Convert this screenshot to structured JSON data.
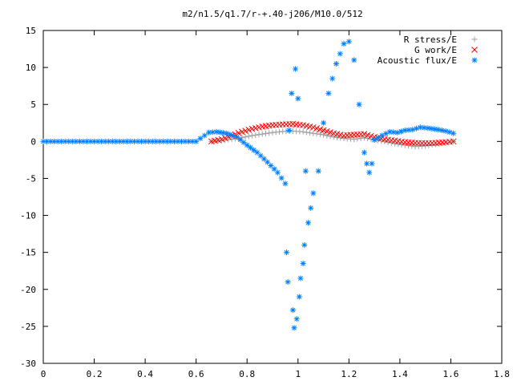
{
  "chart_data": {
    "type": "scatter",
    "title": "m2/n1.5/q1.7/r-+.40-j206/M10.0/512",
    "xlabel": "",
    "ylabel": "",
    "xlim": [
      0,
      1.8
    ],
    "ylim": [
      -30,
      15
    ],
    "x_ticks": [
      "0",
      "0.2",
      "0.4",
      "0.6",
      "0.8",
      "1",
      "1.2",
      "1.4",
      "1.6",
      "1.8"
    ],
    "y_ticks": [
      "15",
      "10",
      "5",
      "0",
      "-5",
      "-10",
      "-15",
      "-20",
      "-25",
      "-30"
    ],
    "grid": false,
    "legend_position": "top-right",
    "series": [
      {
        "name": "R stress/E",
        "marker": "+",
        "color": "#a0a0a0",
        "points": [
          [
            0.66,
            0.0
          ],
          [
            0.7,
            0.1
          ],
          [
            0.74,
            0.3
          ],
          [
            0.78,
            0.5
          ],
          [
            0.82,
            0.8
          ],
          [
            0.86,
            1.0
          ],
          [
            0.9,
            1.2
          ],
          [
            0.94,
            1.35
          ],
          [
            0.98,
            1.4
          ],
          [
            1.02,
            1.3
          ],
          [
            1.06,
            1.1
          ],
          [
            1.1,
            0.9
          ],
          [
            1.14,
            0.6
          ],
          [
            1.18,
            0.4
          ],
          [
            1.22,
            0.3
          ],
          [
            1.26,
            0.5
          ],
          [
            1.3,
            0.2
          ],
          [
            1.34,
            0.0
          ],
          [
            1.38,
            -0.3
          ],
          [
            1.42,
            -0.5
          ],
          [
            1.46,
            -0.7
          ],
          [
            1.5,
            -0.6
          ],
          [
            1.54,
            -0.4
          ],
          [
            1.58,
            -0.2
          ],
          [
            1.61,
            0.0
          ]
        ]
      },
      {
        "name": "G work/E",
        "marker": "x",
        "color": "#ff0000",
        "points": [
          [
            0.66,
            0.0
          ],
          [
            0.7,
            0.3
          ],
          [
            0.74,
            0.8
          ],
          [
            0.78,
            1.3
          ],
          [
            0.82,
            1.7
          ],
          [
            0.86,
            2.0
          ],
          [
            0.9,
            2.2
          ],
          [
            0.94,
            2.3
          ],
          [
            0.98,
            2.35
          ],
          [
            1.02,
            2.2
          ],
          [
            1.06,
            1.9
          ],
          [
            1.1,
            1.5
          ],
          [
            1.14,
            1.1
          ],
          [
            1.18,
            0.8
          ],
          [
            1.22,
            0.9
          ],
          [
            1.26,
            1.0
          ],
          [
            1.3,
            0.6
          ],
          [
            1.34,
            0.3
          ],
          [
            1.38,
            0.1
          ],
          [
            1.42,
            -0.1
          ],
          [
            1.46,
            -0.2
          ],
          [
            1.5,
            -0.25
          ],
          [
            1.54,
            -0.2
          ],
          [
            1.58,
            -0.1
          ],
          [
            1.61,
            0.0
          ]
        ]
      },
      {
        "name": "Acoustic flux/E",
        "marker": "*",
        "color": "#0080ff",
        "points": [
          [
            0.0,
            0.0
          ],
          [
            0.1,
            0.0
          ],
          [
            0.2,
            0.0
          ],
          [
            0.3,
            0.0
          ],
          [
            0.4,
            0.0
          ],
          [
            0.5,
            0.0
          ],
          [
            0.6,
            0.0
          ],
          [
            0.65,
            1.2
          ],
          [
            0.68,
            1.3
          ],
          [
            0.72,
            1.1
          ],
          [
            0.76,
            0.6
          ],
          [
            0.8,
            -0.5
          ],
          [
            0.84,
            -1.5
          ],
          [
            0.88,
            -2.8
          ],
          [
            0.92,
            -4.2
          ],
          [
            0.95,
            -5.7
          ],
          [
            0.955,
            -15.0
          ],
          [
            0.96,
            -19.0
          ],
          [
            0.965,
            1.5
          ],
          [
            0.975,
            6.5
          ],
          [
            0.98,
            -22.8
          ],
          [
            0.985,
            -25.2
          ],
          [
            0.99,
            9.8
          ],
          [
            0.995,
            -24.0
          ],
          [
            1.0,
            5.8
          ],
          [
            1.005,
            -21.0
          ],
          [
            1.01,
            -18.5
          ],
          [
            1.02,
            -16.5
          ],
          [
            1.025,
            -14.0
          ],
          [
            1.03,
            -4.0
          ],
          [
            1.04,
            -11.0
          ],
          [
            1.05,
            -9.0
          ],
          [
            1.06,
            -7.0
          ],
          [
            1.08,
            -4.0
          ],
          [
            1.1,
            2.5
          ],
          [
            1.12,
            6.5
          ],
          [
            1.15,
            10.5
          ],
          [
            1.18,
            13.2
          ],
          [
            1.2,
            13.5
          ],
          [
            1.22,
            11.0
          ],
          [
            1.24,
            5.0
          ],
          [
            1.26,
            -1.5
          ],
          [
            1.27,
            -3.0
          ],
          [
            1.28,
            -4.2
          ],
          [
            1.29,
            -3.0
          ],
          [
            1.3,
            0.2
          ],
          [
            1.33,
            0.8
          ],
          [
            1.36,
            1.3
          ],
          [
            1.39,
            1.2
          ],
          [
            1.42,
            1.5
          ],
          [
            1.45,
            1.6
          ],
          [
            1.48,
            1.9
          ],
          [
            1.51,
            1.8
          ],
          [
            1.55,
            1.6
          ],
          [
            1.58,
            1.4
          ],
          [
            1.61,
            1.1
          ]
        ]
      }
    ]
  }
}
